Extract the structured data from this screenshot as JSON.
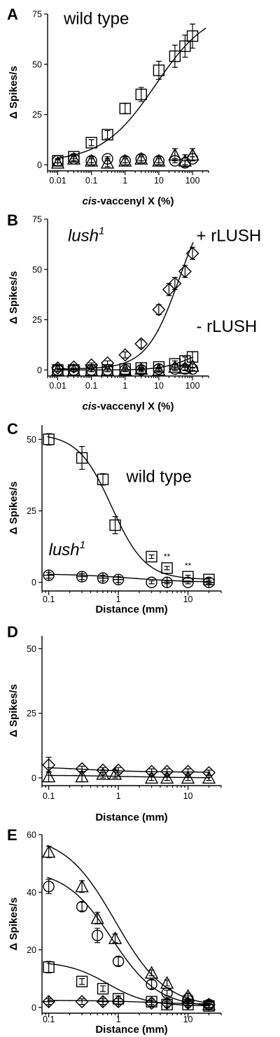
{
  "chart_data": [
    {
      "type": "scatter",
      "panel": "A",
      "xlabel": "cis-vaccenyl X (%)",
      "xlabel_italic": "cis",
      "xlabel_rest": "-vaccenyl X (%)",
      "ylabel": "Δ Spikes/s",
      "xscale": "log",
      "xlim": [
        0.005,
        300
      ],
      "ylim": [
        -3,
        75
      ],
      "xticks": [
        0.01,
        0.1,
        1,
        10,
        100
      ],
      "xtick_labels": [
        "0.01",
        "0.1",
        "1",
        "10",
        "100"
      ],
      "yticks": [
        0,
        25,
        50,
        75
      ],
      "ytick_labels": [
        "0",
        "25",
        "50",
        "75"
      ],
      "annotations": [
        {
          "text": "wild type",
          "italic": false,
          "at": [
            0.015,
            70
          ]
        }
      ],
      "series": [
        {
          "marker": "square",
          "x": [
            0.01,
            0.03,
            0.1,
            0.3,
            1,
            3,
            10,
            30,
            60,
            100
          ],
          "y": [
            2,
            4,
            11,
            15,
            28,
            35,
            47,
            54,
            59,
            64
          ],
          "err": [
            1,
            1,
            1.5,
            2,
            2.5,
            3.5,
            4.5,
            5.5,
            5.5,
            6
          ],
          "fit": {
            "bottom": 1.5,
            "top": 78,
            "ec50": 8,
            "hill": 0.55
          }
        },
        {
          "marker": "circle",
          "x": [
            0.01,
            0.03,
            0.1,
            0.3,
            1,
            3,
            10,
            30,
            60,
            100
          ],
          "y": [
            2,
            3,
            2,
            3,
            2,
            3,
            2,
            2,
            1,
            3
          ],
          "err": [
            1,
            1,
            1,
            1,
            1,
            1,
            1,
            1,
            1,
            1
          ]
        },
        {
          "marker": "triangle",
          "x": [
            0.01,
            0.03,
            0.1,
            0.3,
            1,
            3,
            10,
            30,
            60,
            100
          ],
          "y": [
            1,
            3,
            2,
            1,
            2,
            3,
            2,
            5,
            2,
            5
          ],
          "err": [
            1.5,
            1.5,
            2,
            2,
            2,
            2,
            2,
            3,
            3,
            3
          ]
        }
      ]
    },
    {
      "type": "scatter",
      "panel": "B",
      "xlabel": "cis-vaccenyl X (%)",
      "xlabel_italic": "cis",
      "xlabel_rest": "-vaccenyl X (%)",
      "ylabel": "Δ Spikes/s",
      "xscale": "log",
      "xlim": [
        0.005,
        300
      ],
      "ylim": [
        -3,
        75
      ],
      "xticks": [
        0.01,
        0.1,
        1,
        10,
        100
      ],
      "xtick_labels": [
        "0.01",
        "0.1",
        "1",
        "10",
        "100"
      ],
      "yticks": [
        0,
        25,
        50,
        75
      ],
      "ytick_labels": [
        "0",
        "25",
        "50",
        "75"
      ],
      "annotations": [
        {
          "text": "lush",
          "sup": "1",
          "italic": true,
          "at": [
            0.02,
            64
          ]
        },
        {
          "text": "+ rLUSH",
          "italic": false,
          "at": [
            130,
            64
          ]
        },
        {
          "text": "- rLUSH",
          "italic": false,
          "at": [
            130,
            19
          ]
        }
      ],
      "series": [
        {
          "marker": "diamond",
          "x": [
            0.01,
            0.03,
            0.1,
            0.3,
            1,
            3,
            10,
            20,
            30,
            60,
            100
          ],
          "y": [
            1,
            1.5,
            2.5,
            3.5,
            7.5,
            13,
            30,
            40,
            43,
            49,
            58
          ],
          "err": [
            1,
            1,
            1,
            1,
            1.5,
            2,
            2.5,
            3,
            3,
            3,
            3
          ],
          "fit": {
            "bottom": 0.5,
            "top": 90,
            "ec50": 40,
            "hill": 0.9
          }
        },
        {
          "marker": "square",
          "x": [
            0.01,
            0.03,
            0.1,
            0.3,
            1,
            3,
            10,
            30,
            60,
            100
          ],
          "y": [
            0,
            0,
            0,
            0,
            0.5,
            1,
            1.5,
            3,
            4.5,
            6.5
          ],
          "err": [
            0.8,
            0.8,
            0.8,
            0.8,
            1,
            1,
            1,
            1.5,
            2,
            2.5
          ],
          "fit": {
            "bottom": 0,
            "top": 12,
            "ec50": 90,
            "hill": 1.0
          }
        },
        {
          "marker": "circle",
          "x": [
            0.01,
            0.03,
            0.1,
            0.3,
            1,
            3,
            10,
            30,
            60,
            100
          ],
          "y": [
            0,
            0,
            0,
            0,
            0,
            0,
            0.5,
            0.5,
            0.5,
            0.5
          ],
          "err": [
            0.8,
            0.8,
            0.8,
            0.8,
            0.8,
            0.8,
            0.8,
            0.8,
            0.8,
            0.8
          ]
        },
        {
          "marker": "triangle",
          "x": [
            0.01,
            0.03,
            0.1,
            0.3,
            1,
            3,
            10,
            30,
            60,
            100
          ],
          "y": [
            0,
            0,
            0,
            0,
            0,
            0.5,
            0,
            1.5,
            1,
            2
          ],
          "err": [
            0.8,
            0.8,
            0.8,
            0.8,
            0.8,
            0.8,
            0.8,
            1,
            1,
            1
          ]
        }
      ]
    },
    {
      "type": "scatter",
      "panel": "C",
      "xlabel": "Distance (mm)",
      "ylabel": "Δ Spikes/s",
      "xscale": "log",
      "xlim": [
        0.08,
        30
      ],
      "ylim": [
        -3,
        55
      ],
      "xticks": [
        0.1,
        1,
        10
      ],
      "xtick_labels": [
        "0.1",
        "1",
        "10"
      ],
      "yticks": [
        0,
        25,
        50
      ],
      "ytick_labels": [
        "0",
        "25",
        "50"
      ],
      "annotations": [
        {
          "text": "wild type",
          "italic": false,
          "at": [
            1.3,
            35
          ]
        },
        {
          "text": "lush",
          "sup": "1",
          "italic": true,
          "at": [
            0.1,
            9.5
          ]
        },
        {
          "text": "**",
          "italic": false,
          "at": [
            5,
            8
          ],
          "small": true
        },
        {
          "text": "**",
          "italic": false,
          "at": [
            10,
            4.8
          ],
          "small": true
        }
      ],
      "series": [
        {
          "marker": "square",
          "x": [
            0.1,
            0.3,
            0.6,
            0.9,
            3,
            5,
            10,
            20
          ],
          "y": [
            50,
            43.5,
            36,
            20,
            9,
            5,
            2,
            1
          ],
          "err": [
            2,
            4,
            2,
            3,
            0.6,
            0.6,
            0.5,
            0.5
          ],
          "fit": {
            "bottom": 1,
            "top": 52,
            "ec50": 0.8,
            "hill": -1.8
          }
        },
        {
          "marker": "circle",
          "x": [
            0.1,
            0.3,
            0.6,
            1,
            3,
            5,
            10,
            20
          ],
          "y": [
            2.5,
            2,
            1.5,
            1,
            0,
            0,
            0,
            0
          ],
          "err": [
            1,
            1,
            1,
            1,
            0.5,
            0.5,
            0.5,
            0.5
          ],
          "fit": {
            "bottom": 0,
            "top": 3,
            "ec50": 1.5,
            "hill": -1.0
          }
        },
        {
          "marker": "plus",
          "x": [
            0.1,
            0.3,
            0.6,
            1,
            5,
            20
          ],
          "y": [
            2.5,
            2,
            1.5,
            1,
            0,
            0
          ],
          "err": [
            0,
            0,
            0,
            0,
            0,
            0
          ]
        }
      ]
    },
    {
      "type": "scatter",
      "panel": "D",
      "xlabel": "Distance (mm)",
      "ylabel": "Δ Spikes/s",
      "xscale": "log",
      "xlim": [
        0.08,
        30
      ],
      "ylim": [
        -3,
        55
      ],
      "xticks": [
        0.1,
        1,
        10
      ],
      "xtick_labels": [
        "0.1",
        "1",
        "10"
      ],
      "yticks": [
        0,
        25,
        50
      ],
      "ytick_labels": [
        "0",
        "25",
        "50"
      ],
      "annotations": [],
      "series": [
        {
          "marker": "diamond",
          "x": [
            0.1,
            0.3,
            0.6,
            1,
            3,
            5,
            10,
            20
          ],
          "y": [
            5,
            3.5,
            3,
            3,
            2.5,
            2.5,
            2.5,
            2
          ],
          "err": [
            3,
            1,
            1,
            1,
            1,
            1,
            1,
            1
          ],
          "fit": {
            "bottom": 2.2,
            "top": 4.5,
            "ec50": 0.3,
            "hill": -1.0
          }
        },
        {
          "marker": "triangle",
          "x": [
            0.1,
            0.3,
            0.6,
            0.9,
            3,
            5,
            10,
            20
          ],
          "y": [
            0.5,
            0.5,
            1.5,
            1.5,
            0,
            0,
            0,
            0
          ],
          "err": [
            2,
            2,
            1.5,
            1.5,
            1,
            1,
            1,
            1
          ],
          "fit": {
            "bottom": 0,
            "top": 1,
            "ec50": 1.5,
            "hill": -1.0
          }
        }
      ]
    },
    {
      "type": "scatter",
      "panel": "E",
      "xlabel": "Distance (mm)",
      "ylabel": "Δ Spikes/s",
      "xscale": "log",
      "xlim": [
        0.08,
        30
      ],
      "ylim": [
        -2,
        60
      ],
      "xticks": [
        0.1,
        1,
        10
      ],
      "xtick_labels": [
        "0.1",
        "1",
        "10"
      ],
      "yticks": [
        0,
        20,
        40,
        60
      ],
      "ytick_labels": [
        "0",
        "20",
        "40",
        "60"
      ],
      "annotations": [],
      "series": [
        {
          "marker": "triangle",
          "x": [
            0.1,
            0.3,
            0.5,
            0.9,
            3,
            5,
            10,
            20
          ],
          "y": [
            54,
            42,
            31,
            24,
            12,
            8.5,
            4,
            1
          ],
          "err": [
            2,
            2,
            2,
            1.5,
            1,
            1,
            1,
            1
          ],
          "fit": {
            "bottom": 0,
            "top": 60,
            "ec50": 0.9,
            "hill": -1.2
          }
        },
        {
          "marker": "circle",
          "x": [
            0.1,
            0.3,
            0.5,
            1,
            3,
            5,
            10,
            20
          ],
          "y": [
            42,
            35,
            25,
            16,
            8,
            5,
            3,
            1
          ],
          "err": [
            2.5,
            1.5,
            2.5,
            1.5,
            1.5,
            1,
            1,
            1
          ],
          "fit": {
            "bottom": 0,
            "top": 48,
            "ec50": 0.8,
            "hill": -1.3
          }
        },
        {
          "marker": "square",
          "x": [
            0.1,
            0.3,
            0.6,
            1,
            3,
            5,
            10,
            20
          ],
          "y": [
            14,
            9,
            6.5,
            3,
            2,
            1,
            1,
            0.5
          ],
          "err": [
            2,
            1,
            1,
            1,
            1,
            1,
            1,
            1
          ],
          "fit": {
            "bottom": 0.5,
            "top": 16,
            "ec50": 0.7,
            "hill": -1.5
          }
        },
        {
          "marker": "diamond",
          "x": [
            0.1,
            0.3,
            0.6,
            1,
            3,
            5,
            10,
            20
          ],
          "y": [
            2,
            2,
            2,
            2,
            1.5,
            1.5,
            1.5,
            1
          ],
          "err": [
            1,
            1,
            1,
            1,
            1,
            1,
            1,
            1
          ],
          "fit": {
            "bottom": 1,
            "top": 2.5,
            "ec50": 3,
            "hill": -1.0
          }
        },
        {
          "marker": "plus",
          "x": [
            0.1,
            0.6,
            1,
            5,
            10,
            20
          ],
          "y": [
            2,
            2,
            2,
            1.5,
            1.5,
            1
          ],
          "err": [
            0,
            0,
            0,
            0,
            0,
            0
          ]
        }
      ]
    }
  ]
}
